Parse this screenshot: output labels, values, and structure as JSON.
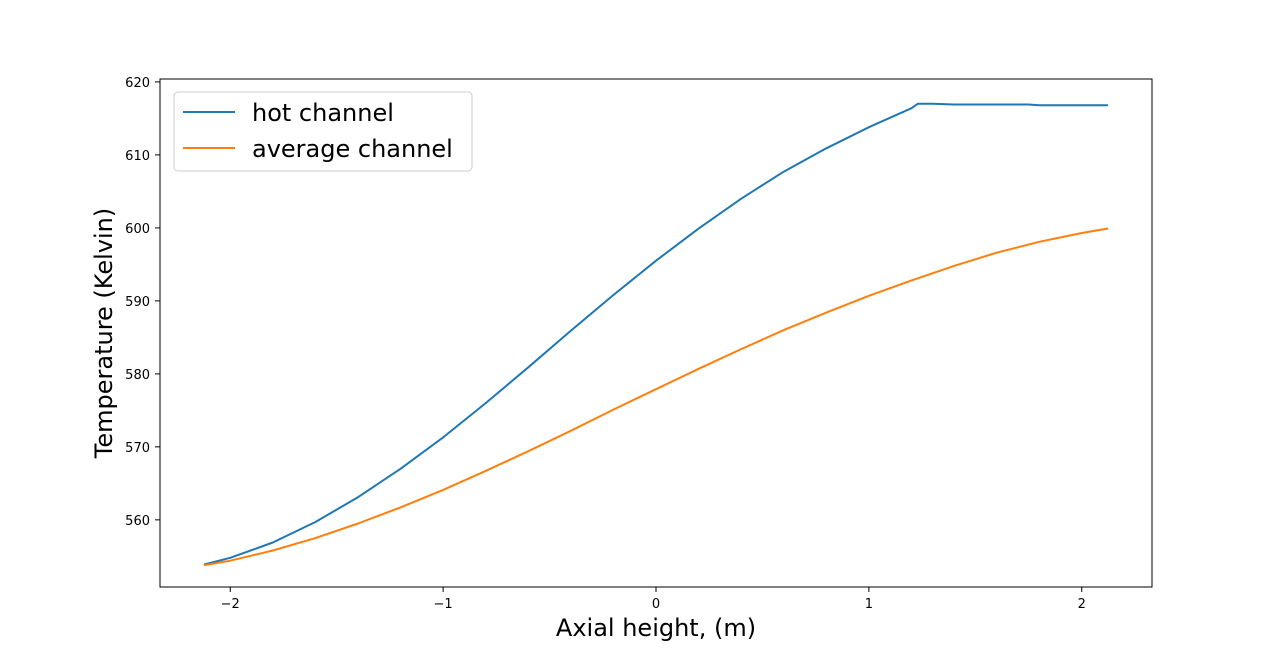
{
  "chart_data": {
    "type": "line",
    "title": "",
    "xlabel": "Axial height, (m)",
    "ylabel": "Temperature (Kelvin)",
    "xlim": [
      -2.33,
      2.33
    ],
    "ylim": [
      550.8,
      620.4
    ],
    "xticks": [
      -2,
      -1,
      0,
      1,
      2
    ],
    "xtick_labels": [
      "−2",
      "−1",
      "0",
      "1",
      "2"
    ],
    "yticks": [
      560,
      570,
      580,
      590,
      600,
      610,
      620
    ],
    "ytick_labels": [
      "560",
      "570",
      "580",
      "590",
      "600",
      "610",
      "620"
    ],
    "grid": false,
    "legend_position": "top-left",
    "series": [
      {
        "name": "hot channel",
        "color": "#1f77b4",
        "x": [
          -2.12,
          -2.0,
          -1.8,
          -1.6,
          -1.4,
          -1.2,
          -1.0,
          -0.8,
          -0.6,
          -0.4,
          -0.2,
          0.0,
          0.2,
          0.4,
          0.6,
          0.8,
          1.0,
          1.1,
          1.2,
          1.23,
          1.3,
          1.4,
          1.6,
          1.75,
          1.8,
          2.0,
          2.12
        ],
        "y": [
          553.9,
          554.8,
          556.9,
          559.7,
          563.1,
          567.0,
          571.3,
          576.0,
          580.9,
          585.9,
          590.8,
          595.5,
          599.9,
          604.0,
          607.7,
          610.9,
          613.8,
          615.1,
          616.4,
          617.0,
          617.0,
          616.9,
          616.9,
          616.9,
          616.8,
          616.8,
          616.8
        ]
      },
      {
        "name": "average channel",
        "color": "#ff7f0e",
        "x": [
          -2.12,
          -2.0,
          -1.8,
          -1.6,
          -1.4,
          -1.2,
          -1.0,
          -0.8,
          -0.6,
          -0.4,
          -0.2,
          0.0,
          0.2,
          0.4,
          0.6,
          0.8,
          1.0,
          1.2,
          1.4,
          1.6,
          1.8,
          2.0,
          2.12
        ],
        "y": [
          553.8,
          554.4,
          555.8,
          557.5,
          559.5,
          561.7,
          564.1,
          566.7,
          569.4,
          572.2,
          575.1,
          577.9,
          580.7,
          583.4,
          586.0,
          588.4,
          590.7,
          592.8,
          594.8,
          596.6,
          598.1,
          599.3,
          599.9
        ]
      }
    ]
  }
}
